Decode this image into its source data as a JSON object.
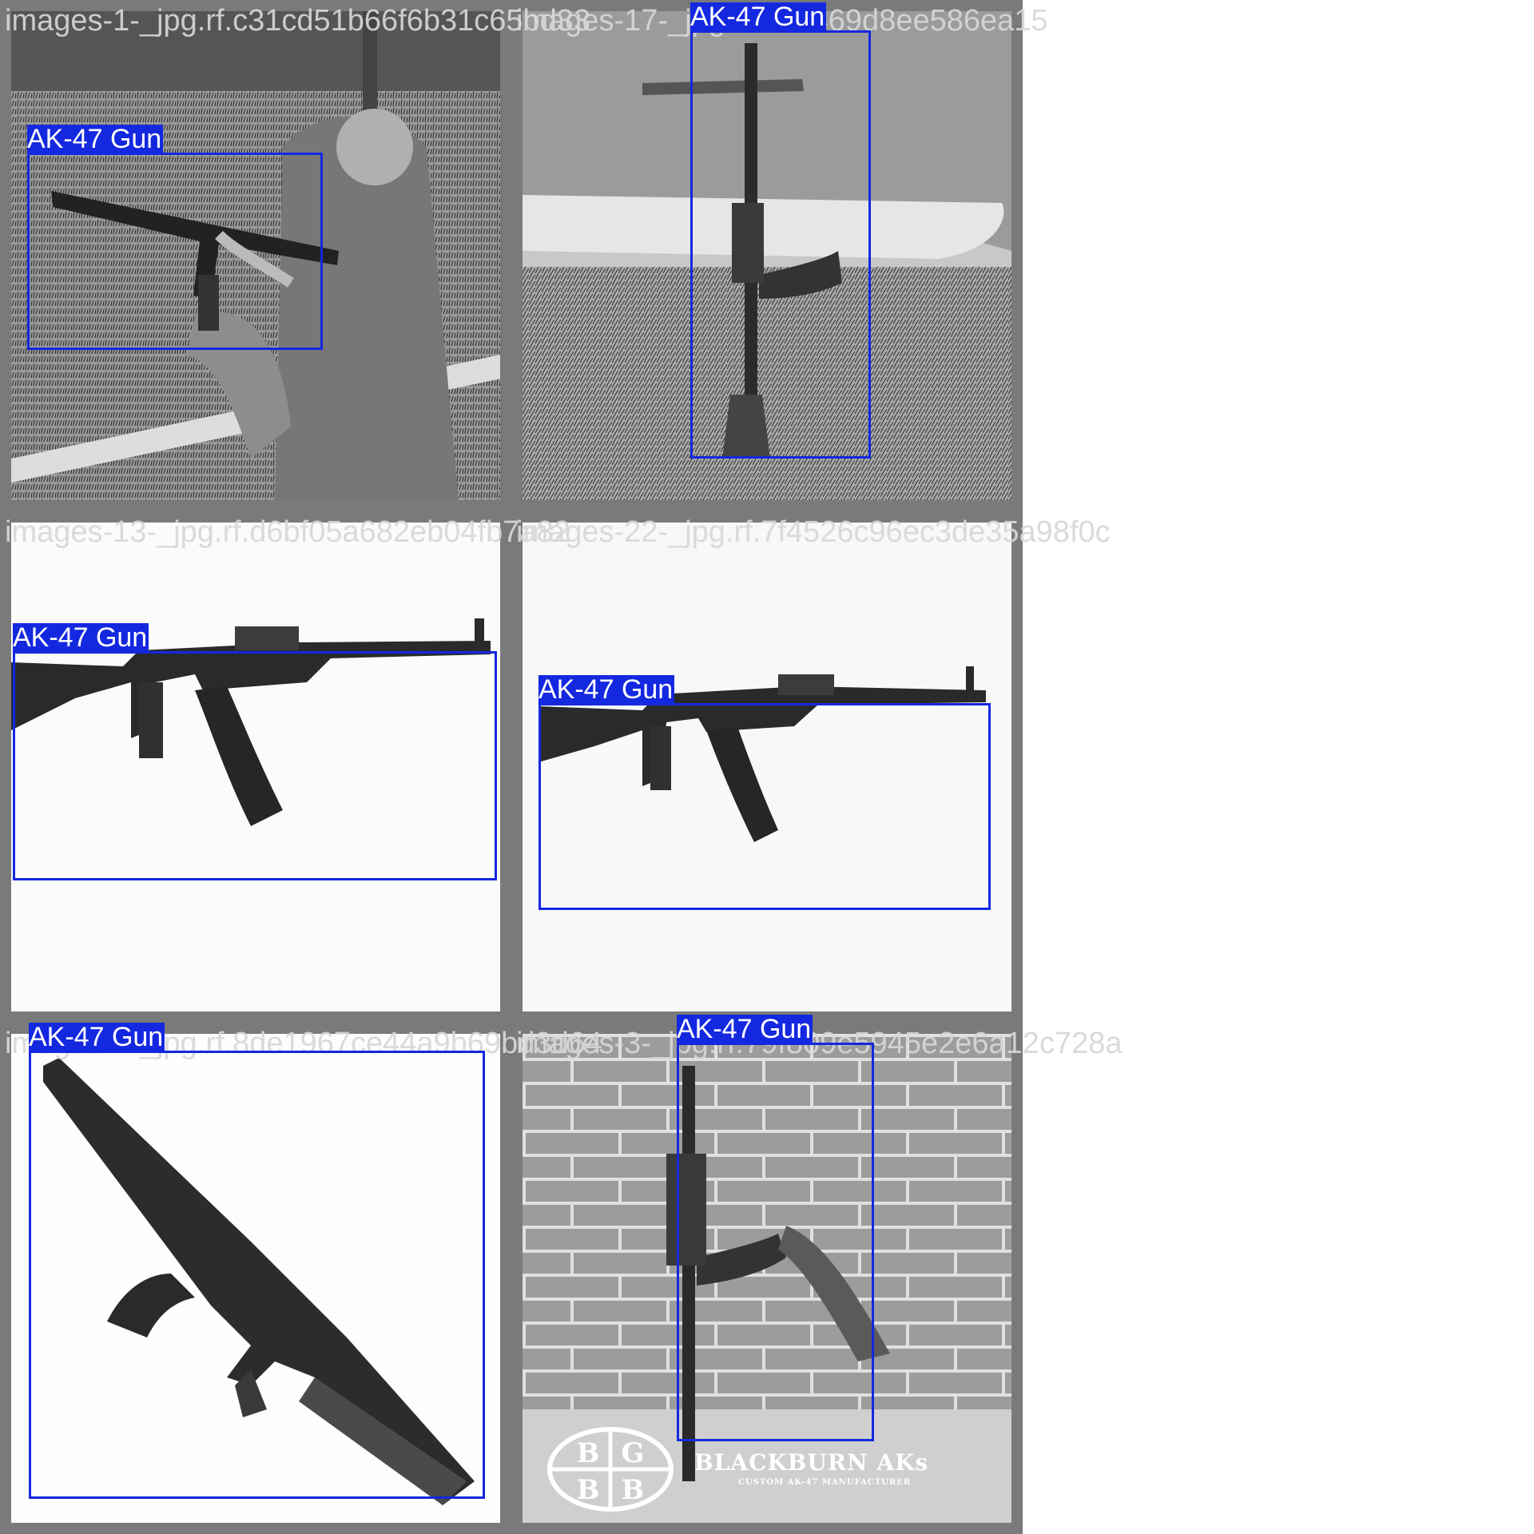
{
  "tiles": [
    {
      "filename": "images-1-_jpg.rf.c31cd51b66f6b31c65bd33",
      "scene": "kneeling-shooter-yard",
      "detections": [
        {
          "label": "AK-47 Gun"
        }
      ]
    },
    {
      "filename": "images-17-_jpg.rf.5dd469d8ee586ea15",
      "scene": "rifle-leaning-on-truck",
      "detections": [
        {
          "label": "AK-47 Gun"
        }
      ]
    },
    {
      "filename": "images-13-_jpg.rf.d6bf05a682eb04fb7a82",
      "scene": "rifle-side-view-white",
      "detections": [
        {
          "label": "AK-47 Gun"
        }
      ]
    },
    {
      "filename": "images-22-_jpg.rf.7f4526c96ec3de35a98f0c",
      "scene": "rifle-side-view-white-2",
      "detections": [
        {
          "label": "AK-47 Gun"
        }
      ]
    },
    {
      "filename": "images-7-_jpg.rf.8de1967ce44a9b69bd3d64",
      "scene": "rifle-diagonal-white",
      "detections": [
        {
          "label": "AK-47 Gun"
        }
      ]
    },
    {
      "filename": "images-3-_jpg.rf.79f809e5945e2e6a12c728a",
      "scene": "rifle-against-brick-wall",
      "detections": [
        {
          "label": "AK-47 Gun"
        }
      ],
      "logo": {
        "text": "BG BB",
        "brand": "BLACKBURN AKs",
        "subtitle": "CUSTOM AK-47 MANUFACTURER"
      }
    }
  ],
  "colors": {
    "frame": "#7a7a7a",
    "box": "#1428e0",
    "box_text": "#ffffff",
    "filename_text": "#d7d7d7"
  }
}
